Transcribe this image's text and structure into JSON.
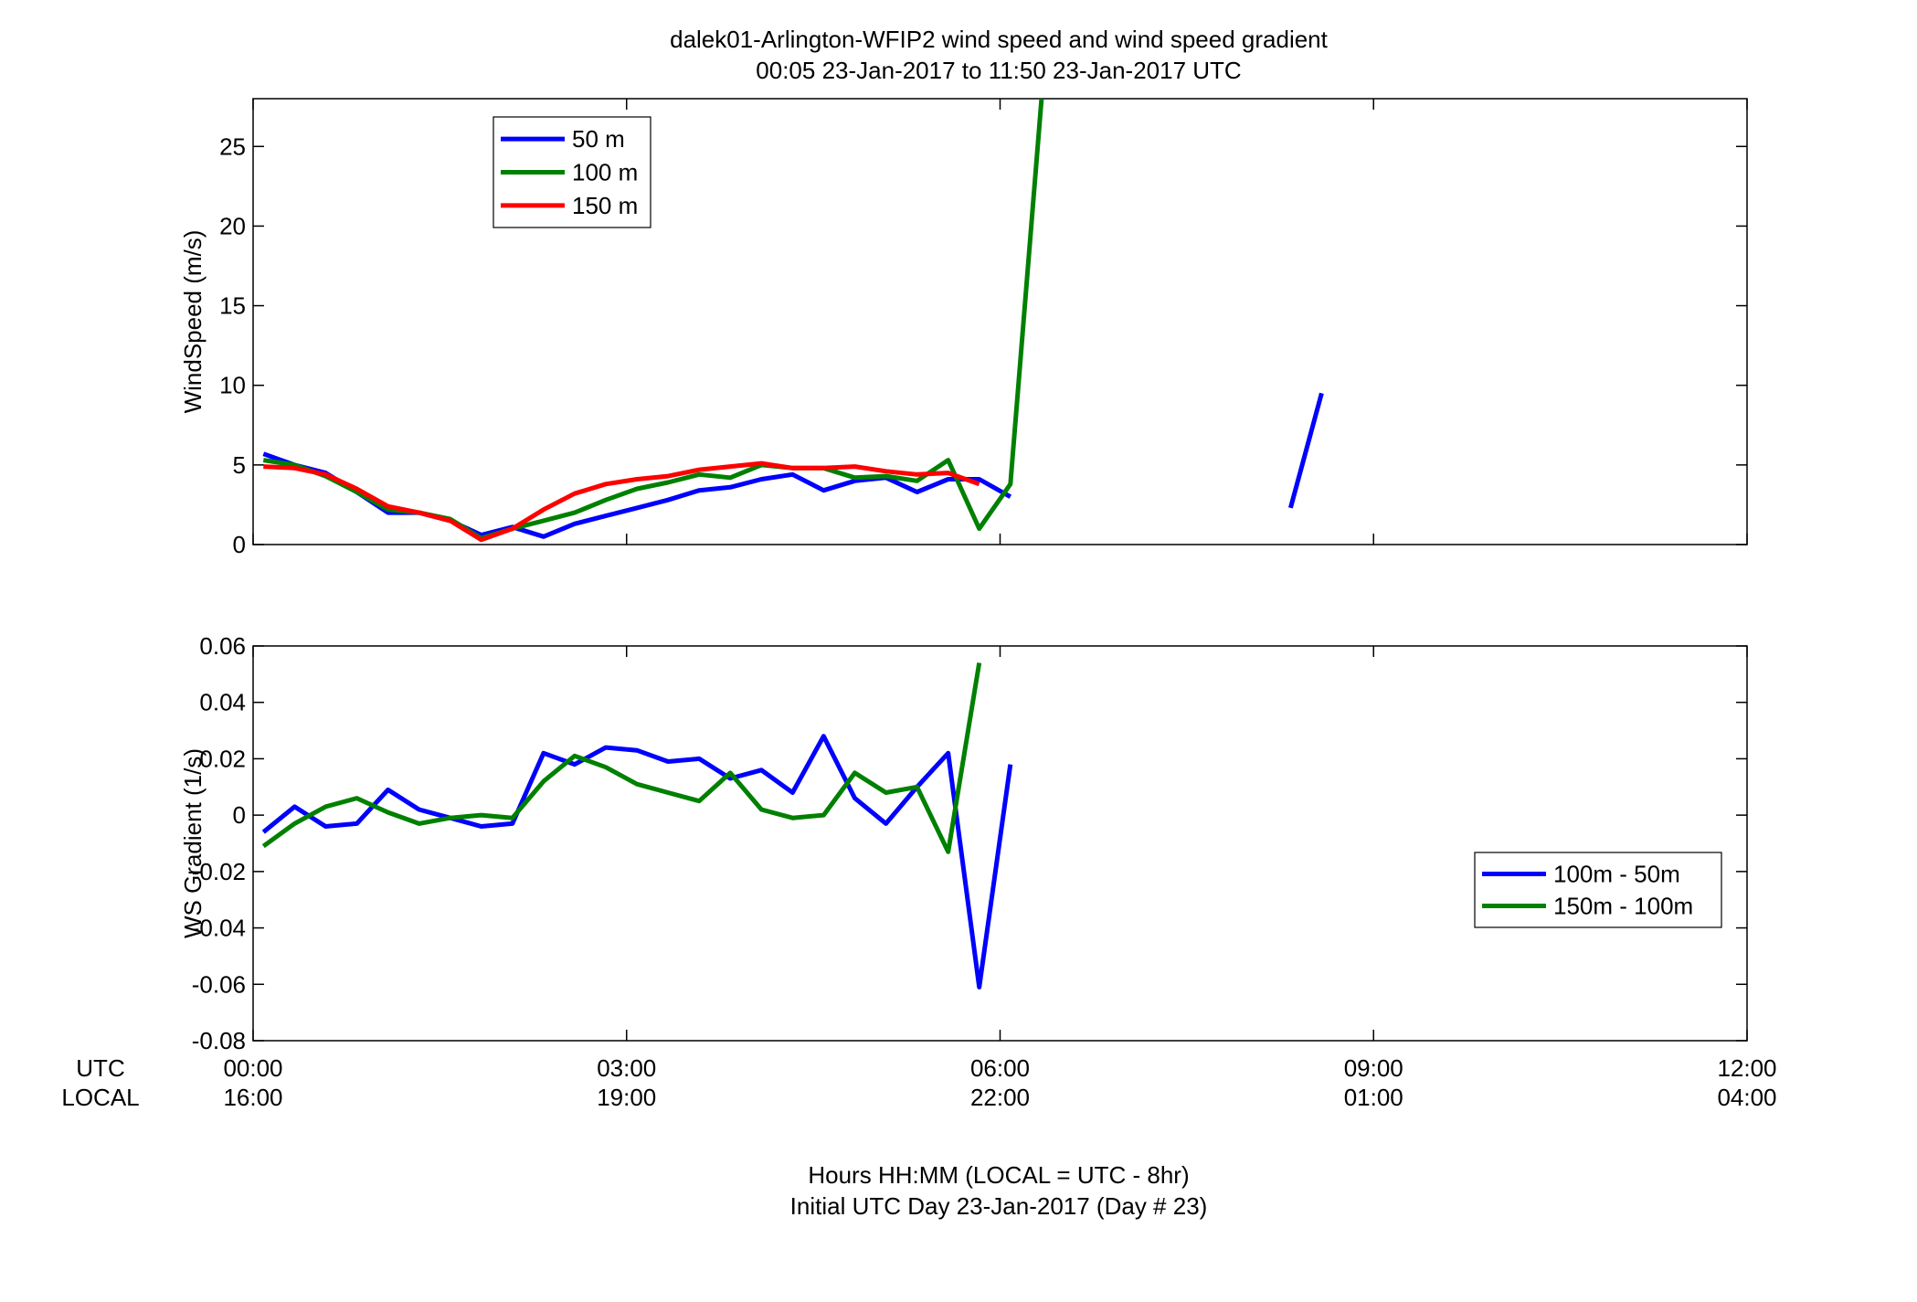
{
  "title": {
    "line1": "dalek01-Arlington-WFIP2  wind speed and wind speed gradient",
    "line2": "00:05 23-Jan-2017 to 11:50 23-Jan-2017  UTC"
  },
  "xaxis": {
    "row_label_utc": "UTC",
    "row_label_local": "LOCAL",
    "utc_ticks": [
      "00:00",
      "03:00",
      "06:00",
      "09:00",
      "12:00"
    ],
    "local_ticks": [
      "16:00",
      "19:00",
      "22:00",
      "01:00",
      "04:00"
    ],
    "xlabel_line1": "Hours HH:MM  (LOCAL = UTC - 8hr)",
    "xlabel_line2": "Initial UTC Day 23-Jan-2017 (Day # 23)"
  },
  "chart_data": [
    {
      "type": "line",
      "ylabel": "WindSpeed (m/s)",
      "xlim": [
        0,
        12
      ],
      "ylim": [
        0,
        28
      ],
      "yticks": [
        "0",
        "5",
        "10",
        "15",
        "20",
        "25"
      ],
      "grid": false,
      "legend_position": "top-left",
      "series": [
        {
          "name": "50 m",
          "color": "#0000ff",
          "segments": [
            [
              [
                0.083,
                5.7
              ],
              [
                0.333,
                5.0
              ],
              [
                0.583,
                4.5
              ],
              [
                0.833,
                3.3
              ],
              [
                1.083,
                2.0
              ],
              [
                1.333,
                2.0
              ],
              [
                1.583,
                1.5
              ],
              [
                1.833,
                0.6
              ],
              [
                2.083,
                1.1
              ],
              [
                2.333,
                0.5
              ],
              [
                2.583,
                1.3
              ],
              [
                2.833,
                1.8
              ],
              [
                3.083,
                2.3
              ],
              [
                3.333,
                2.8
              ],
              [
                3.583,
                3.4
              ],
              [
                3.833,
                3.6
              ],
              [
                4.083,
                4.1
              ],
              [
                4.333,
                4.4
              ],
              [
                4.583,
                3.4
              ],
              [
                4.833,
                4.0
              ],
              [
                5.083,
                4.2
              ],
              [
                5.333,
                3.3
              ],
              [
                5.583,
                4.1
              ],
              [
                5.833,
                4.1
              ],
              [
                6.083,
                3.0
              ]
            ],
            [
              [
                8.333,
                2.3
              ],
              [
                8.583,
                9.5
              ]
            ]
          ]
        },
        {
          "name": "100 m",
          "color": "#008000",
          "segments": [
            [
              [
                0.083,
                5.3
              ],
              [
                0.333,
                5.0
              ],
              [
                0.583,
                4.3
              ],
              [
                0.833,
                3.3
              ],
              [
                1.083,
                2.2
              ],
              [
                1.333,
                2.0
              ],
              [
                1.583,
                1.6
              ],
              [
                1.833,
                0.4
              ],
              [
                2.083,
                1.0
              ],
              [
                2.333,
                1.5
              ],
              [
                2.583,
                2.0
              ],
              [
                2.833,
                2.8
              ],
              [
                3.083,
                3.5
              ],
              [
                3.333,
                3.9
              ],
              [
                3.583,
                4.4
              ],
              [
                3.833,
                4.2
              ],
              [
                4.083,
                5.0
              ],
              [
                4.333,
                4.8
              ],
              [
                4.583,
                4.8
              ],
              [
                4.833,
                4.2
              ],
              [
                5.083,
                4.3
              ],
              [
                5.333,
                4.0
              ],
              [
                5.583,
                5.3
              ],
              [
                5.833,
                1.0
              ],
              [
                6.083,
                3.8
              ],
              [
                6.333,
                28.0
              ]
            ]
          ]
        },
        {
          "name": "150 m",
          "color": "#ff0000",
          "segments": [
            [
              [
                0.083,
                4.9
              ],
              [
                0.333,
                4.8
              ],
              [
                0.583,
                4.4
              ],
              [
                0.833,
                3.5
              ],
              [
                1.083,
                2.4
              ],
              [
                1.333,
                2.0
              ],
              [
                1.583,
                1.5
              ],
              [
                1.833,
                0.3
              ],
              [
                2.083,
                1.0
              ],
              [
                2.333,
                2.2
              ],
              [
                2.583,
                3.2
              ],
              [
                2.833,
                3.8
              ],
              [
                3.083,
                4.1
              ],
              [
                3.333,
                4.3
              ],
              [
                3.583,
                4.7
              ],
              [
                3.833,
                4.9
              ],
              [
                4.083,
                5.1
              ],
              [
                4.333,
                4.8
              ],
              [
                4.583,
                4.8
              ],
              [
                4.833,
                4.9
              ],
              [
                5.083,
                4.6
              ],
              [
                5.333,
                4.4
              ],
              [
                5.583,
                4.5
              ],
              [
                5.833,
                3.8
              ]
            ]
          ]
        }
      ]
    },
    {
      "type": "line",
      "ylabel": "WS Gradient (1/s)",
      "xlim": [
        0,
        12
      ],
      "ylim": [
        -0.08,
        0.06
      ],
      "yticks": [
        "-0.08",
        "-0.06",
        "-0.04",
        "-0.02",
        "0",
        "0.02",
        "0.04",
        "0.06"
      ],
      "grid": false,
      "legend_position": "right",
      "series": [
        {
          "name": "100m - 50m",
          "color": "#0000ff",
          "segments": [
            [
              [
                0.083,
                -0.006
              ],
              [
                0.333,
                0.003
              ],
              [
                0.583,
                -0.004
              ],
              [
                0.833,
                -0.003
              ],
              [
                1.083,
                0.009
              ],
              [
                1.333,
                0.002
              ],
              [
                1.583,
                -0.001
              ],
              [
                1.833,
                -0.004
              ],
              [
                2.083,
                -0.003
              ],
              [
                2.333,
                0.022
              ],
              [
                2.583,
                0.018
              ],
              [
                2.833,
                0.024
              ],
              [
                3.083,
                0.023
              ],
              [
                3.333,
                0.019
              ],
              [
                3.583,
                0.02
              ],
              [
                3.833,
                0.013
              ],
              [
                4.083,
                0.016
              ],
              [
                4.333,
                0.008
              ],
              [
                4.583,
                0.028
              ],
              [
                4.833,
                0.006
              ],
              [
                5.083,
                -0.003
              ],
              [
                5.333,
                0.01
              ],
              [
                5.583,
                0.022
              ],
              [
                5.833,
                -0.061
              ],
              [
                6.083,
                0.018
              ]
            ]
          ]
        },
        {
          "name": "150m - 100m",
          "color": "#008000",
          "segments": [
            [
              [
                0.083,
                -0.011
              ],
              [
                0.333,
                -0.003
              ],
              [
                0.583,
                0.003
              ],
              [
                0.833,
                0.006
              ],
              [
                1.083,
                0.001
              ],
              [
                1.333,
                -0.003
              ],
              [
                1.583,
                -0.001
              ],
              [
                1.833,
                0.0
              ],
              [
                2.083,
                -0.001
              ],
              [
                2.333,
                0.012
              ],
              [
                2.583,
                0.021
              ],
              [
                2.833,
                0.017
              ],
              [
                3.083,
                0.011
              ],
              [
                3.333,
                0.008
              ],
              [
                3.583,
                0.005
              ],
              [
                3.833,
                0.015
              ],
              [
                4.083,
                0.002
              ],
              [
                4.333,
                -0.001
              ],
              [
                4.583,
                0.0
              ],
              [
                4.833,
                0.015
              ],
              [
                5.083,
                0.008
              ],
              [
                5.333,
                0.01
              ],
              [
                5.583,
                -0.013
              ],
              [
                5.833,
                0.054
              ]
            ]
          ]
        }
      ]
    }
  ]
}
